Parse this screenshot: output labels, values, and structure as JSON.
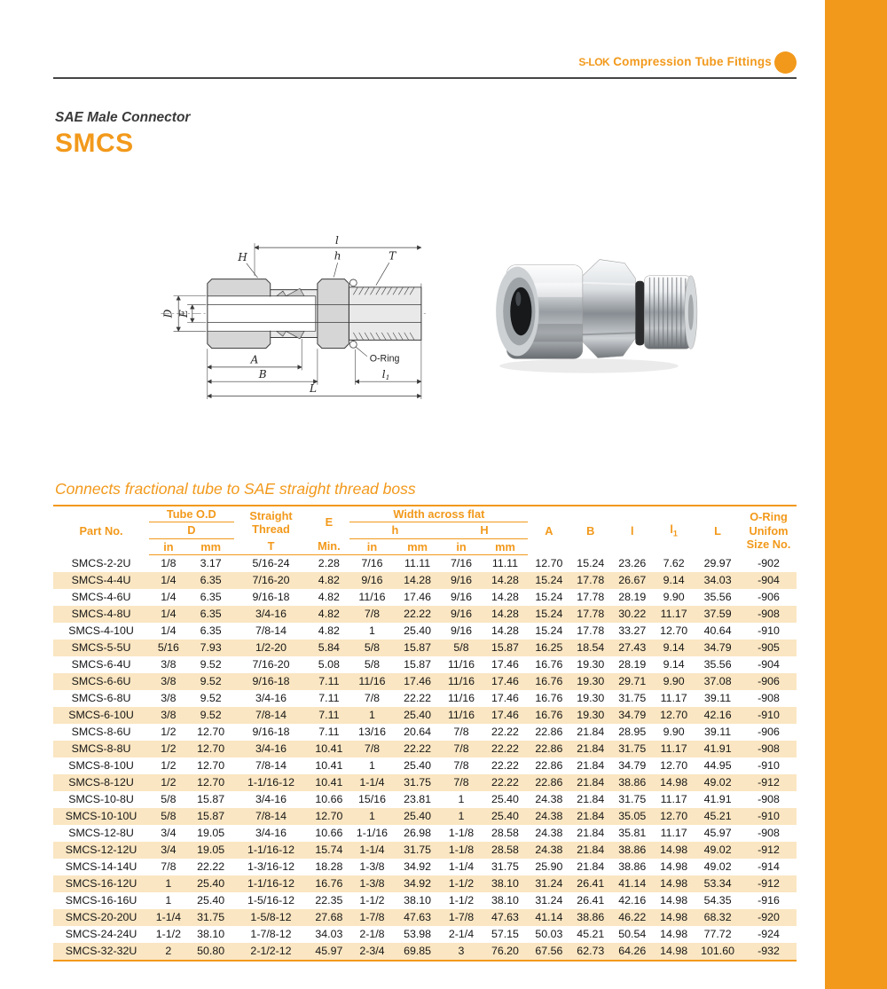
{
  "brand": {
    "logo": "S-LOK",
    "title": "Compression Tube Fittings"
  },
  "series": {
    "label": "SAE Male Connector",
    "code": "SMCS"
  },
  "subtitle": "Connects fractional tube to SAE straight thread boss",
  "colors": {
    "accent": "#F2991B",
    "row_stripe": "#FAE6C2",
    "top_rule": "#454545"
  },
  "diagram": {
    "labels": {
      "H": "H",
      "l": "l",
      "h": "h",
      "T": "T",
      "D": "D",
      "E": "E",
      "oring": "O-Ring",
      "A": "A",
      "B": "B",
      "l1": "l",
      "l1_sub": "1",
      "L": "L"
    }
  },
  "table": {
    "headers": {
      "part_no": "Part No.",
      "tube_od": "Tube O.D",
      "d": "D",
      "in": "in",
      "mm": "mm",
      "straight_l1": "Straight",
      "straight_l2": "Thread",
      "t": "T",
      "e": "E",
      "min": "Min.",
      "width_across_flat": "Width across flat",
      "h_small": "h",
      "h_big": "H",
      "a": "A",
      "b": "B",
      "l": "l",
      "l1": "l",
      "l1_sub": "1",
      "big_l": "L",
      "oring_l1": "O-Ring",
      "oring_l2": "Unifom",
      "oring_l3": "Size No."
    },
    "rows": [
      [
        "SMCS-2-2U",
        "1/8",
        "3.17",
        "5/16-24",
        "2.28",
        "7/16",
        "11.11",
        "7/16",
        "11.11",
        "12.70",
        "15.24",
        "23.26",
        "7.62",
        "29.97",
        "-902"
      ],
      [
        "SMCS-4-4U",
        "1/4",
        "6.35",
        "7/16-20",
        "4.82",
        "9/16",
        "14.28",
        "9/16",
        "14.28",
        "15.24",
        "17.78",
        "26.67",
        "9.14",
        "34.03",
        "-904"
      ],
      [
        "SMCS-4-6U",
        "1/4",
        "6.35",
        "9/16-18",
        "4.82",
        "11/16",
        "17.46",
        "9/16",
        "14.28",
        "15.24",
        "17.78",
        "28.19",
        "9.90",
        "35.56",
        "-906"
      ],
      [
        "SMCS-4-8U",
        "1/4",
        "6.35",
        "3/4-16",
        "4.82",
        "7/8",
        "22.22",
        "9/16",
        "14.28",
        "15.24",
        "17.78",
        "30.22",
        "11.17",
        "37.59",
        "-908"
      ],
      [
        "SMCS-4-10U",
        "1/4",
        "6.35",
        "7/8-14",
        "4.82",
        "1",
        "25.40",
        "9/16",
        "14.28",
        "15.24",
        "17.78",
        "33.27",
        "12.70",
        "40.64",
        "-910"
      ],
      [
        "SMCS-5-5U",
        "5/16",
        "7.93",
        "1/2-20",
        "5.84",
        "5/8",
        "15.87",
        "5/8",
        "15.87",
        "16.25",
        "18.54",
        "27.43",
        "9.14",
        "34.79",
        "-905"
      ],
      [
        "SMCS-6-4U",
        "3/8",
        "9.52",
        "7/16-20",
        "5.08",
        "5/8",
        "15.87",
        "11/16",
        "17.46",
        "16.76",
        "19.30",
        "28.19",
        "9.14",
        "35.56",
        "-904"
      ],
      [
        "SMCS-6-6U",
        "3/8",
        "9.52",
        "9/16-18",
        "7.11",
        "11/16",
        "17.46",
        "11/16",
        "17.46",
        "16.76",
        "19.30",
        "29.71",
        "9.90",
        "37.08",
        "-906"
      ],
      [
        "SMCS-6-8U",
        "3/8",
        "9.52",
        "3/4-16",
        "7.11",
        "7/8",
        "22.22",
        "11/16",
        "17.46",
        "16.76",
        "19.30",
        "31.75",
        "11.17",
        "39.11",
        "-908"
      ],
      [
        "SMCS-6-10U",
        "3/8",
        "9.52",
        "7/8-14",
        "7.11",
        "1",
        "25.40",
        "11/16",
        "17.46",
        "16.76",
        "19.30",
        "34.79",
        "12.70",
        "42.16",
        "-910"
      ],
      [
        "SMCS-8-6U",
        "1/2",
        "12.70",
        "9/16-18",
        "7.11",
        "13/16",
        "20.64",
        "7/8",
        "22.22",
        "22.86",
        "21.84",
        "28.95",
        "9.90",
        "39.11",
        "-906"
      ],
      [
        "SMCS-8-8U",
        "1/2",
        "12.70",
        "3/4-16",
        "10.41",
        "7/8",
        "22.22",
        "7/8",
        "22.22",
        "22.86",
        "21.84",
        "31.75",
        "11.17",
        "41.91",
        "-908"
      ],
      [
        "SMCS-8-10U",
        "1/2",
        "12.70",
        "7/8-14",
        "10.41",
        "1",
        "25.40",
        "7/8",
        "22.22",
        "22.86",
        "21.84",
        "34.79",
        "12.70",
        "44.95",
        "-910"
      ],
      [
        "SMCS-8-12U",
        "1/2",
        "12.70",
        "1-1/16-12",
        "10.41",
        "1-1/4",
        "31.75",
        "7/8",
        "22.22",
        "22.86",
        "21.84",
        "38.86",
        "14.98",
        "49.02",
        "-912"
      ],
      [
        "SMCS-10-8U",
        "5/8",
        "15.87",
        "3/4-16",
        "10.66",
        "15/16",
        "23.81",
        "1",
        "25.40",
        "24.38",
        "21.84",
        "31.75",
        "11.17",
        "41.91",
        "-908"
      ],
      [
        "SMCS-10-10U",
        "5/8",
        "15.87",
        "7/8-14",
        "12.70",
        "1",
        "25.40",
        "1",
        "25.40",
        "24.38",
        "21.84",
        "35.05",
        "12.70",
        "45.21",
        "-910"
      ],
      [
        "SMCS-12-8U",
        "3/4",
        "19.05",
        "3/4-16",
        "10.66",
        "1-1/16",
        "26.98",
        "1-1/8",
        "28.58",
        "24.38",
        "21.84",
        "35.81",
        "11.17",
        "45.97",
        "-908"
      ],
      [
        "SMCS-12-12U",
        "3/4",
        "19.05",
        "1-1/16-12",
        "15.74",
        "1-1/4",
        "31.75",
        "1-1/8",
        "28.58",
        "24.38",
        "21.84",
        "38.86",
        "14.98",
        "49.02",
        "-912"
      ],
      [
        "SMCS-14-14U",
        "7/8",
        "22.22",
        "1-3/16-12",
        "18.28",
        "1-3/8",
        "34.92",
        "1-1/4",
        "31.75",
        "25.90",
        "21.84",
        "38.86",
        "14.98",
        "49.02",
        "-914"
      ],
      [
        "SMCS-16-12U",
        "1",
        "25.40",
        "1-1/16-12",
        "16.76",
        "1-3/8",
        "34.92",
        "1-1/2",
        "38.10",
        "31.24",
        "26.41",
        "41.14",
        "14.98",
        "53.34",
        "-912"
      ],
      [
        "SMCS-16-16U",
        "1",
        "25.40",
        "1-5/16-12",
        "22.35",
        "1-1/2",
        "38.10",
        "1-1/2",
        "38.10",
        "31.24",
        "26.41",
        "42.16",
        "14.98",
        "54.35",
        "-916"
      ],
      [
        "SMCS-20-20U",
        "1-1/4",
        "31.75",
        "1-5/8-12",
        "27.68",
        "1-7/8",
        "47.63",
        "1-7/8",
        "47.63",
        "41.14",
        "38.86",
        "46.22",
        "14.98",
        "68.32",
        "-920"
      ],
      [
        "SMCS-24-24U",
        "1-1/2",
        "38.10",
        "1-7/8-12",
        "34.03",
        "2-1/8",
        "53.98",
        "2-1/4",
        "57.15",
        "50.03",
        "45.21",
        "50.54",
        "14.98",
        "77.72",
        "-924"
      ],
      [
        "SMCS-32-32U",
        "2",
        "50.80",
        "2-1/2-12",
        "45.97",
        "2-3/4",
        "69.85",
        "3",
        "76.20",
        "67.56",
        "62.73",
        "64.26",
        "14.98",
        "101.60",
        "-932"
      ]
    ]
  }
}
